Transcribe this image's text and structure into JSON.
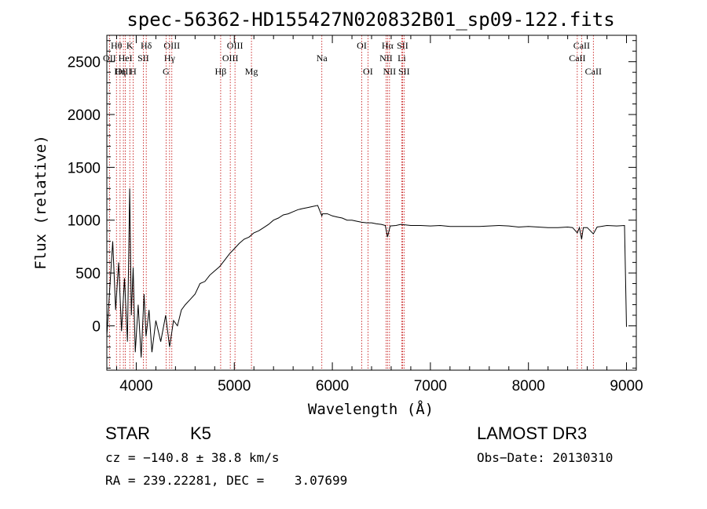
{
  "chart_data": {
    "type": "line",
    "title": "spec-56362-HD155427N020832B01_sp09-122.fits",
    "xlabel": "Wavelength (Å)",
    "ylabel": "Flux (relative)",
    "xlim": [
      3700,
      9100
    ],
    "ylim": [
      -420,
      2750
    ],
    "xticks": [
      4000,
      5000,
      6000,
      7000,
      8000,
      9000
    ],
    "yticks": [
      0,
      500,
      1000,
      1500,
      2000,
      2500
    ],
    "series": [
      {
        "name": "flux",
        "x": [
          3700,
          3730,
          3760,
          3790,
          3820,
          3850,
          3880,
          3910,
          3933,
          3950,
          3968,
          3990,
          4020,
          4050,
          4080,
          4100,
          4130,
          4160,
          4200,
          4250,
          4300,
          4340,
          4380,
          4420,
          4460,
          4500,
          4550,
          4600,
          4650,
          4700,
          4750,
          4800,
          4850,
          4900,
          4950,
          5000,
          5050,
          5100,
          5150,
          5200,
          5250,
          5300,
          5350,
          5400,
          5450,
          5500,
          5550,
          5600,
          5650,
          5700,
          5750,
          5800,
          5850,
          5893,
          5900,
          5950,
          6000,
          6050,
          6100,
          6150,
          6200,
          6250,
          6300,
          6350,
          6400,
          6450,
          6500,
          6540,
          6563,
          6590,
          6650,
          6700,
          6800,
          6900,
          7000,
          7100,
          7200,
          7300,
          7400,
          7500,
          7600,
          7700,
          7800,
          7900,
          8000,
          8100,
          8200,
          8300,
          8400,
          8450,
          8498,
          8520,
          8542,
          8560,
          8600,
          8662,
          8700,
          8800,
          8900,
          8980,
          9000
        ],
        "y": [
          -100,
          350,
          800,
          150,
          600,
          -50,
          450,
          -150,
          1300,
          100,
          550,
          -250,
          200,
          -300,
          300,
          -100,
          150,
          -250,
          50,
          -150,
          100,
          -200,
          50,
          0,
          150,
          200,
          250,
          300,
          400,
          420,
          480,
          520,
          560,
          620,
          680,
          730,
          780,
          820,
          840,
          880,
          900,
          930,
          960,
          1000,
          1020,
          1050,
          1060,
          1080,
          1100,
          1110,
          1120,
          1130,
          1140,
          1040,
          1060,
          1060,
          1040,
          1030,
          1020,
          1000,
          1000,
          990,
          980,
          975,
          975,
          965,
          960,
          950,
          840,
          945,
          950,
          960,
          950,
          950,
          945,
          950,
          940,
          940,
          940,
          940,
          945,
          950,
          945,
          935,
          940,
          935,
          930,
          930,
          935,
          930,
          880,
          930,
          820,
          930,
          930,
          870,
          935,
          950,
          945,
          950,
          -10
        ]
      }
    ],
    "spectral_lines": [
      {
        "label": "Hθ",
        "wavelength": 3798,
        "row": 1
      },
      {
        "label": "OII",
        "wavelength": 3727,
        "row": 2
      },
      {
        "label": "OIII",
        "wavelength": 3869,
        "row": 3
      },
      {
        "label": "Hη",
        "wavelength": 3835,
        "row": 3
      },
      {
        "label": "K",
        "wavelength": 3934,
        "row": 1
      },
      {
        "label": "HeI",
        "wavelength": 3889,
        "row": 2
      },
      {
        "label": "H",
        "wavelength": 3968,
        "row": 3
      },
      {
        "label": "SII",
        "wavelength": 4072,
        "row": 2
      },
      {
        "label": "Hδ",
        "wavelength": 4102,
        "row": 1
      },
      {
        "label": "OIII",
        "wavelength": 4363,
        "row": 1
      },
      {
        "label": "Hγ",
        "wavelength": 4340,
        "row": 2
      },
      {
        "label": "G",
        "wavelength": 4304,
        "row": 3
      },
      {
        "label": "Hβ",
        "wavelength": 4861,
        "row": 3
      },
      {
        "label": "OIII",
        "wavelength": 5007,
        "row": 1
      },
      {
        "label": "OIII",
        "wavelength": 4959,
        "row": 2
      },
      {
        "label": "Mg",
        "wavelength": 5175,
        "row": 3
      },
      {
        "label": "Na",
        "wavelength": 5893,
        "row": 2
      },
      {
        "label": "OI",
        "wavelength": 6300,
        "row": 1
      },
      {
        "label": "OI",
        "wavelength": 6363,
        "row": 3
      },
      {
        "label": "Hα",
        "wavelength": 6563,
        "row": 1
      },
      {
        "label": "NII",
        "wavelength": 6548,
        "row": 2
      },
      {
        "label": "NII",
        "wavelength": 6583,
        "row": 3
      },
      {
        "label": "SII",
        "wavelength": 6716,
        "row": 1
      },
      {
        "label": "Li",
        "wavelength": 6708,
        "row": 2
      },
      {
        "label": "SII",
        "wavelength": 6731,
        "row": 3
      },
      {
        "label": "CaII",
        "wavelength": 8542,
        "row": 1
      },
      {
        "label": "CaII",
        "wavelength": 8498,
        "row": 2
      },
      {
        "label": "CaII",
        "wavelength": 8662,
        "row": 3
      }
    ]
  },
  "info": {
    "object_class": "STAR",
    "subclass": "K5",
    "survey": "LAMOST DR3",
    "cz": "cz = −140.8 ± 38.8 km/s",
    "obs_date": "Obs−Date: 20130310",
    "coords": "RA = 239.22281, DEC =    3.07699"
  },
  "colors": {
    "line_marker": "#c00000",
    "spectrum": "#000000"
  }
}
